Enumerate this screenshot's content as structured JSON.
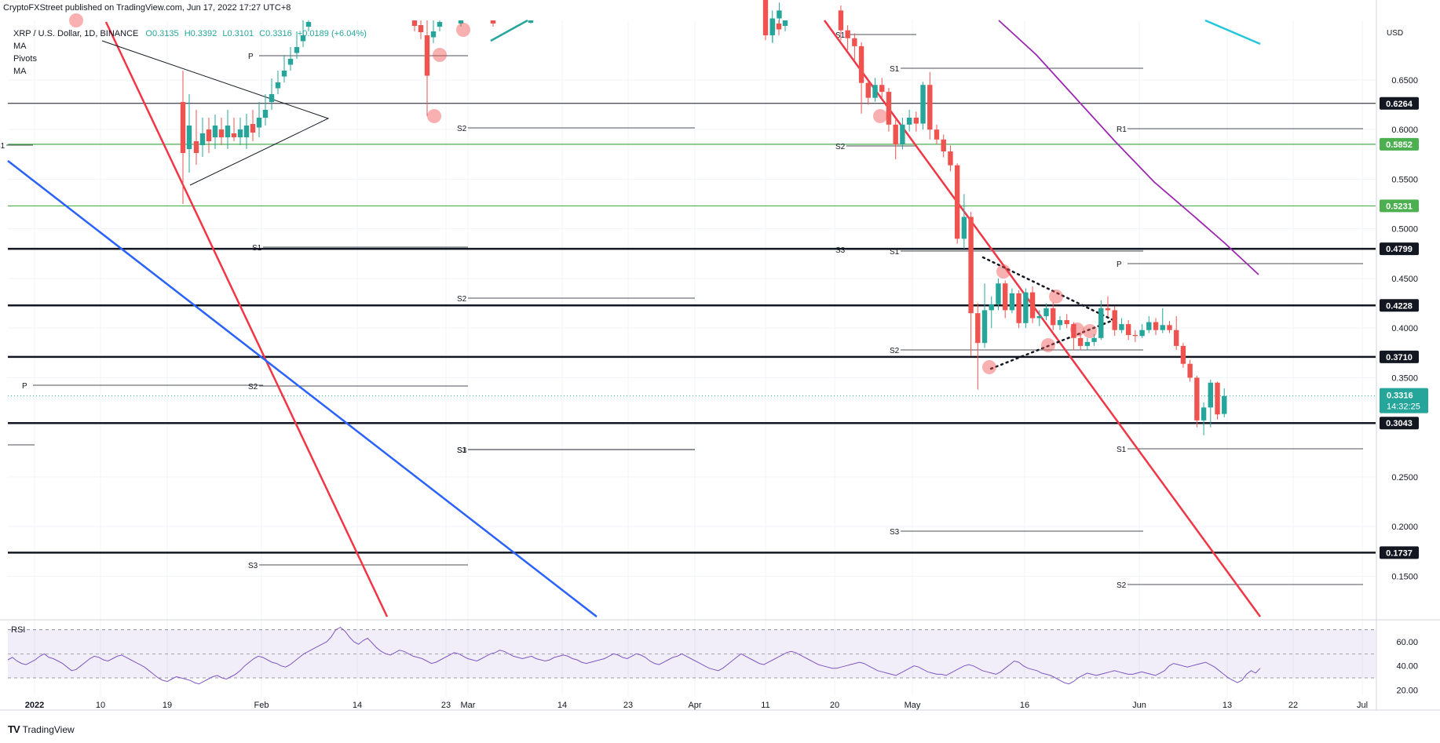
{
  "header": {
    "published_text": "CryptoFXStreet published on TradingView.com, Jun 17, 2022 17:27 UTC+8",
    "symbol_line": "XRP / U.S. Dollar, 1D, BINANCE",
    "ohlc": {
      "o": "O0.3135",
      "h": "H0.3392",
      "l": "L0.3101",
      "c": "C0.3316",
      "chg": "+0.0189 (+6.04%)"
    },
    "indicators": [
      "MA",
      "Pivots",
      "MA"
    ]
  },
  "footer": {
    "brand": "TradingView"
  },
  "colors": {
    "up": "#26a69a",
    "down": "#ef5350",
    "red_trend": "#f23645",
    "blue_trend": "#2962ff",
    "purple_ma": "#9c27b0",
    "cyan_ma": "#26c6da",
    "green_level": "#4caf50",
    "rsi": "#7e57c2"
  },
  "chart_data": [
    {
      "type": "candlestick",
      "currency_label": "USD",
      "y_ticks": [
        "0.6500",
        "0.6000",
        "0.5500",
        "0.5000",
        "0.4500",
        "0.4000",
        "0.3500",
        "0.2500",
        "0.2000",
        "0.1500"
      ],
      "ylim": [
        0.11,
        0.71
      ],
      "x_ticks": [
        "2022",
        "10",
        "19",
        "Feb",
        "14",
        "23",
        "Mar",
        "14",
        "23",
        "Apr",
        "11",
        "20",
        "May",
        "16",
        "Jun",
        "13",
        "22",
        "Jul"
      ],
      "price_labels": {
        "current": "0.3316",
        "countdown": "14:32:25",
        "levels": [
          "0.6264",
          "0.5852",
          "0.5231",
          "0.4799",
          "0.4228",
          "0.3710",
          "0.3043",
          "0.1737"
        ]
      },
      "horizontal_levels": [
        {
          "value": 0.6264,
          "style": "thin-black"
        },
        {
          "value": 0.5852,
          "style": "green"
        },
        {
          "value": 0.5231,
          "style": "green"
        },
        {
          "value": 0.4799,
          "style": "thick-black"
        },
        {
          "value": 0.4228,
          "style": "thick-black"
        },
        {
          "value": 0.371,
          "style": "thick-black"
        },
        {
          "value": 0.3043,
          "style": "thick-black"
        },
        {
          "value": 0.1737,
          "style": "thick-black"
        }
      ],
      "pivot_labels": [
        "S1",
        "P",
        "S1",
        "S1",
        "S2",
        "S2",
        "S2",
        "S3",
        "S3",
        "S1",
        "S2",
        "S3",
        "S1",
        "P",
        "S2",
        "S1",
        "S3",
        "R1",
        "P",
        "S1",
        "S2"
      ],
      "candles_recent": [
        {
          "date": "Apr 10",
          "o": 0.755,
          "h": 0.762,
          "l": 0.735,
          "c": 0.748
        },
        {
          "date": "Apr 11",
          "o": 0.748,
          "h": 0.75,
          "l": 0.69,
          "c": 0.695
        },
        {
          "date": "Apr 12",
          "o": 0.695,
          "h": 0.72,
          "l": 0.688,
          "c": 0.712
        },
        {
          "date": "Apr 13",
          "o": 0.712,
          "h": 0.728,
          "l": 0.703,
          "c": 0.72
        },
        {
          "date": "Apr 22",
          "o": 0.72,
          "h": 0.725,
          "l": 0.69,
          "c": 0.7
        },
        {
          "date": "Apr 23",
          "o": 0.7,
          "h": 0.705,
          "l": 0.68,
          "c": 0.692
        },
        {
          "date": "Apr 24",
          "o": 0.692,
          "h": 0.697,
          "l": 0.67,
          "c": 0.684
        },
        {
          "date": "Apr 25",
          "o": 0.684,
          "h": 0.688,
          "l": 0.616,
          "c": 0.647
        },
        {
          "date": "Apr 26",
          "o": 0.647,
          "h": 0.65,
          "l": 0.625,
          "c": 0.632
        },
        {
          "date": "Apr 27",
          "o": 0.632,
          "h": 0.652,
          "l": 0.628,
          "c": 0.645
        },
        {
          "date": "Apr 28",
          "o": 0.645,
          "h": 0.652,
          "l": 0.63,
          "c": 0.638
        },
        {
          "date": "Apr 29",
          "o": 0.638,
          "h": 0.642,
          "l": 0.598,
          "c": 0.605
        },
        {
          "date": "Apr 30",
          "o": 0.605,
          "h": 0.61,
          "l": 0.57,
          "c": 0.585
        },
        {
          "date": "May 1",
          "o": 0.585,
          "h": 0.612,
          "l": 0.58,
          "c": 0.605
        },
        {
          "date": "May 2",
          "o": 0.605,
          "h": 0.62,
          "l": 0.598,
          "c": 0.612
        },
        {
          "date": "May 3",
          "o": 0.612,
          "h": 0.618,
          "l": 0.598,
          "c": 0.606
        },
        {
          "date": "May 4",
          "o": 0.606,
          "h": 0.648,
          "l": 0.6,
          "c": 0.645
        },
        {
          "date": "May 5",
          "o": 0.645,
          "h": 0.658,
          "l": 0.59,
          "c": 0.6
        },
        {
          "date": "May 6",
          "o": 0.6,
          "h": 0.605,
          "l": 0.585,
          "c": 0.59
        },
        {
          "date": "May 7",
          "o": 0.59,
          "h": 0.595,
          "l": 0.572,
          "c": 0.578
        },
        {
          "date": "May 8",
          "o": 0.578,
          "h": 0.584,
          "l": 0.558,
          "c": 0.564
        },
        {
          "date": "May 9",
          "o": 0.564,
          "h": 0.566,
          "l": 0.485,
          "c": 0.49
        },
        {
          "date": "May 10",
          "o": 0.49,
          "h": 0.535,
          "l": 0.48,
          "c": 0.512
        },
        {
          "date": "May 11",
          "o": 0.512,
          "h": 0.517,
          "l": 0.372,
          "c": 0.415
        },
        {
          "date": "May 12",
          "o": 0.415,
          "h": 0.425,
          "l": 0.338,
          "c": 0.385
        },
        {
          "date": "May 13",
          "o": 0.385,
          "h": 0.445,
          "l": 0.38,
          "c": 0.418
        },
        {
          "date": "May 14",
          "o": 0.418,
          "h": 0.432,
          "l": 0.4,
          "c": 0.424
        },
        {
          "date": "May 15",
          "o": 0.424,
          "h": 0.45,
          "l": 0.418,
          "c": 0.445
        },
        {
          "date": "May 16",
          "o": 0.445,
          "h": 0.448,
          "l": 0.41,
          "c": 0.418
        },
        {
          "date": "May 17",
          "o": 0.418,
          "h": 0.44,
          "l": 0.415,
          "c": 0.435
        },
        {
          "date": "May 18",
          "o": 0.435,
          "h": 0.438,
          "l": 0.4,
          "c": 0.405
        },
        {
          "date": "May 19",
          "o": 0.405,
          "h": 0.44,
          "l": 0.4,
          "c": 0.436
        },
        {
          "date": "May 20",
          "o": 0.436,
          "h": 0.442,
          "l": 0.405,
          "c": 0.41
        },
        {
          "date": "May 21",
          "o": 0.41,
          "h": 0.418,
          "l": 0.402,
          "c": 0.412
        },
        {
          "date": "May 22",
          "o": 0.412,
          "h": 0.425,
          "l": 0.408,
          "c": 0.42
        },
        {
          "date": "May 23",
          "o": 0.42,
          "h": 0.426,
          "l": 0.398,
          "c": 0.403
        },
        {
          "date": "May 24",
          "o": 0.403,
          "h": 0.412,
          "l": 0.398,
          "c": 0.408
        },
        {
          "date": "May 25",
          "o": 0.408,
          "h": 0.414,
          "l": 0.4,
          "c": 0.404
        },
        {
          "date": "May 26",
          "o": 0.404,
          "h": 0.406,
          "l": 0.378,
          "c": 0.39
        },
        {
          "date": "May 27",
          "o": 0.39,
          "h": 0.395,
          "l": 0.378,
          "c": 0.382
        },
        {
          "date": "May 28",
          "o": 0.382,
          "h": 0.39,
          "l": 0.378,
          "c": 0.386
        },
        {
          "date": "May 29",
          "o": 0.386,
          "h": 0.394,
          "l": 0.382,
          "c": 0.39
        },
        {
          "date": "May 30",
          "o": 0.39,
          "h": 0.428,
          "l": 0.388,
          "c": 0.42
        },
        {
          "date": "May 31",
          "o": 0.42,
          "h": 0.432,
          "l": 0.412,
          "c": 0.418
        },
        {
          "date": "Jun 1",
          "o": 0.418,
          "h": 0.422,
          "l": 0.392,
          "c": 0.398
        },
        {
          "date": "Jun 2",
          "o": 0.398,
          "h": 0.41,
          "l": 0.395,
          "c": 0.404
        },
        {
          "date": "Jun 3",
          "o": 0.404,
          "h": 0.408,
          "l": 0.388,
          "c": 0.393
        },
        {
          "date": "Jun 4",
          "o": 0.393,
          "h": 0.398,
          "l": 0.386,
          "c": 0.392
        },
        {
          "date": "Jun 5",
          "o": 0.392,
          "h": 0.404,
          "l": 0.39,
          "c": 0.398
        },
        {
          "date": "Jun 6",
          "o": 0.398,
          "h": 0.412,
          "l": 0.395,
          "c": 0.406
        },
        {
          "date": "Jun 7",
          "o": 0.406,
          "h": 0.41,
          "l": 0.393,
          "c": 0.398
        },
        {
          "date": "Jun 8",
          "o": 0.398,
          "h": 0.42,
          "l": 0.395,
          "c": 0.403
        },
        {
          "date": "Jun 9",
          "o": 0.403,
          "h": 0.407,
          "l": 0.395,
          "c": 0.398
        },
        {
          "date": "Jun 10",
          "o": 0.398,
          "h": 0.412,
          "l": 0.378,
          "c": 0.382
        },
        {
          "date": "Jun 11",
          "o": 0.382,
          "h": 0.385,
          "l": 0.36,
          "c": 0.364
        },
        {
          "date": "Jun 12",
          "o": 0.364,
          "h": 0.368,
          "l": 0.346,
          "c": 0.35
        },
        {
          "date": "Jun 13",
          "o": 0.35,
          "h": 0.352,
          "l": 0.3,
          "c": 0.307
        },
        {
          "date": "Jun 14",
          "o": 0.307,
          "h": 0.325,
          "l": 0.292,
          "c": 0.32
        },
        {
          "date": "Jun 15",
          "o": 0.32,
          "h": 0.348,
          "l": 0.3,
          "c": 0.345
        },
        {
          "date": "Jun 16",
          "o": 0.345,
          "h": 0.346,
          "l": 0.308,
          "c": 0.313
        },
        {
          "date": "Jun 17",
          "o": 0.3135,
          "h": 0.3392,
          "l": 0.3101,
          "c": 0.3316
        }
      ]
    },
    {
      "type": "line",
      "name": "RSI",
      "y_ticks": [
        "60.00",
        "40.00",
        "20.00"
      ],
      "ylim": [
        15,
        75
      ],
      "band": [
        30,
        70
      ],
      "values": [
        45,
        47,
        44,
        42,
        41,
        43,
        45,
        48,
        50,
        47,
        46,
        44,
        42,
        39,
        36,
        37,
        40,
        43,
        46,
        48,
        47,
        45,
        44,
        46,
        48,
        49,
        47,
        45,
        43,
        41,
        39,
        36,
        33,
        30,
        28,
        27,
        29,
        31,
        30,
        29,
        28,
        26,
        25,
        27,
        29,
        31,
        32,
        30,
        29,
        31,
        33,
        36,
        40,
        43,
        46,
        48,
        47,
        45,
        43,
        42,
        40,
        39,
        41,
        44,
        47,
        50,
        52,
        54,
        56,
        58,
        60,
        64,
        70,
        72,
        69,
        64,
        60,
        58,
        61,
        63,
        59,
        55,
        52,
        50,
        49,
        51,
        53,
        52,
        50,
        48,
        47,
        46,
        44,
        42,
        43,
        45,
        47,
        49,
        51,
        50,
        48,
        46,
        45,
        44,
        46,
        48,
        50,
        51,
        53,
        52,
        50,
        48,
        47,
        46,
        47,
        48,
        46,
        45,
        44,
        45,
        47,
        48,
        49,
        48,
        46,
        45,
        43,
        42,
        43,
        44,
        45,
        46,
        48,
        50,
        49,
        47,
        46,
        48,
        50,
        49,
        47,
        44,
        42,
        41,
        43,
        45,
        47,
        48,
        50,
        48,
        46,
        44,
        42,
        40,
        38,
        37,
        36,
        38,
        41,
        44,
        47,
        50,
        48,
        46,
        44,
        42,
        41,
        43,
        45,
        47,
        49,
        51,
        52,
        51,
        49,
        47,
        45,
        43,
        41,
        40,
        39,
        38,
        38,
        39,
        40,
        41,
        42,
        43,
        42,
        40,
        38,
        36,
        35,
        34,
        33,
        32,
        34,
        36,
        38,
        40,
        39,
        37,
        35,
        34,
        33,
        33,
        32,
        34,
        36,
        38,
        40,
        41,
        40,
        38,
        36,
        35,
        34,
        33,
        35,
        38,
        41,
        44,
        43,
        40,
        38,
        37,
        36,
        34,
        33,
        32,
        30,
        28,
        26,
        25,
        27,
        30,
        32,
        34,
        33,
        32,
        33,
        34,
        35,
        36,
        35,
        34,
        33,
        33,
        34,
        35,
        34,
        33,
        32,
        34,
        36,
        40,
        42,
        41,
        40,
        39,
        40,
        41,
        42,
        43,
        41,
        39,
        36,
        33,
        30,
        28,
        26,
        28,
        33,
        36,
        34,
        38
      ]
    }
  ]
}
